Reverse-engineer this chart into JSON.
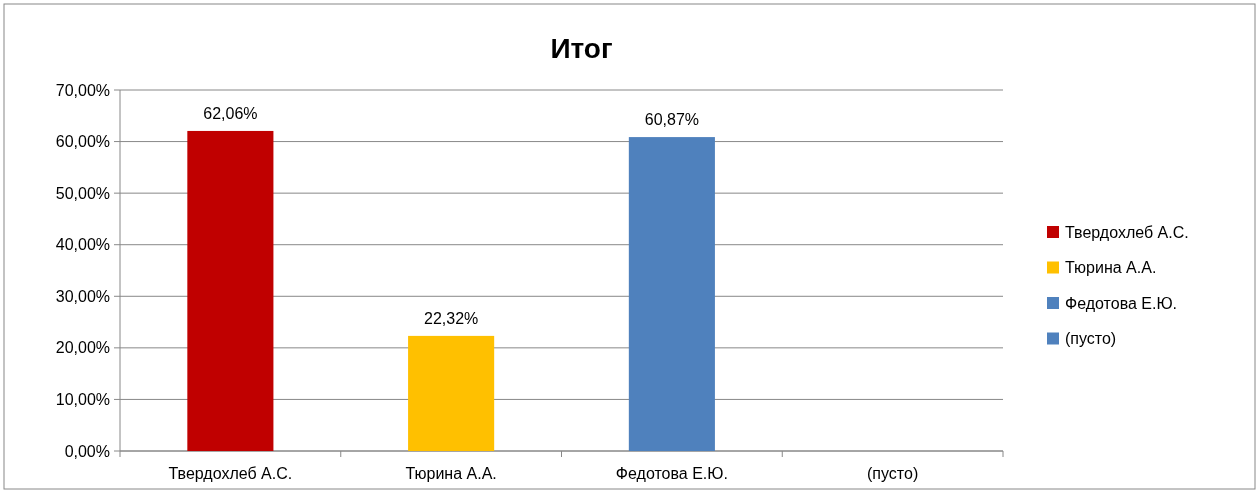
{
  "chart_data": {
    "type": "bar",
    "title": "Итог",
    "categories": [
      "Твердохлеб А.С.",
      "Тюрина А.А.",
      "Федотова Е.Ю.",
      "(пусто)"
    ],
    "series": [
      {
        "name": "Твердохлеб А.С.",
        "color": "#c00000",
        "values": [
          62.06,
          null,
          null,
          null
        ],
        "value_labels": [
          "62,06%",
          null,
          null,
          null
        ]
      },
      {
        "name": "Тюрина А.А.",
        "color": "#ffc000",
        "values": [
          null,
          22.32,
          null,
          null
        ],
        "value_labels": [
          null,
          "22,32%",
          null,
          null
        ]
      },
      {
        "name": "Федотова Е.Ю.",
        "color": "#4f81bd",
        "values": [
          null,
          null,
          60.87,
          null
        ],
        "value_labels": [
          null,
          null,
          "60,87%",
          null
        ]
      },
      {
        "name": "(пусто)",
        "color": "#4f81bd",
        "values": [
          null,
          null,
          null,
          null
        ]
      }
    ],
    "ylim": [
      0,
      70
    ],
    "yticks": [
      {
        "value": 0,
        "label": "0,00%"
      },
      {
        "value": 10,
        "label": "10,00%"
      },
      {
        "value": 20,
        "label": "20,00%"
      },
      {
        "value": 30,
        "label": "30,00%"
      },
      {
        "value": 40,
        "label": "40,00%"
      },
      {
        "value": 50,
        "label": "50,00%"
      },
      {
        "value": 60,
        "label": "60,00%"
      },
      {
        "value": 70,
        "label": "70,00%"
      }
    ],
    "grid": "y",
    "legend": "right"
  }
}
